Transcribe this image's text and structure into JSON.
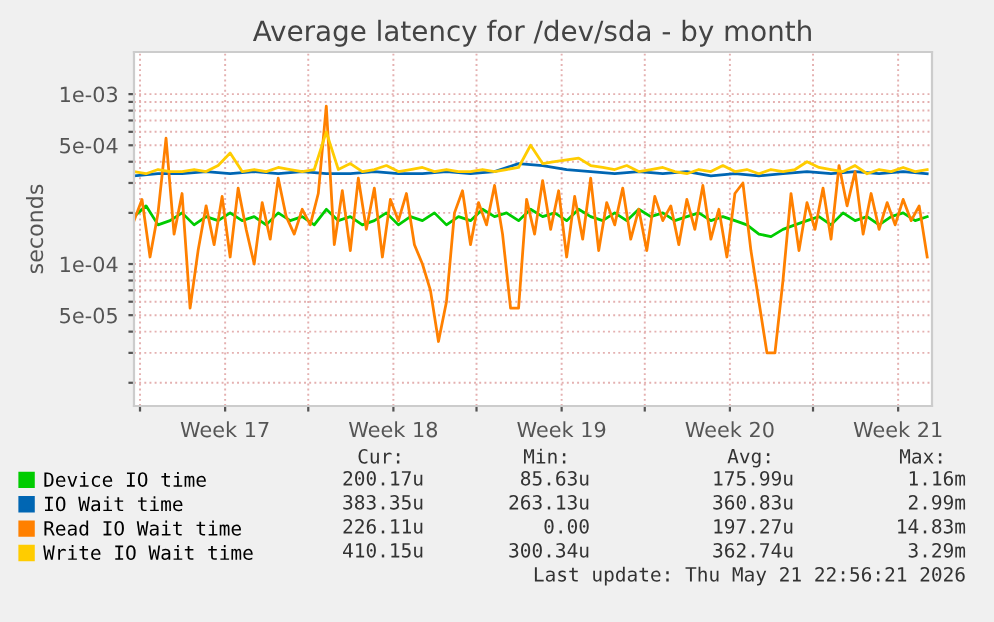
{
  "chart_data": {
    "type": "line",
    "title": "Average latency for /dev/sda - by month",
    "ylabel": "seconds",
    "log": true,
    "xlim": [
      "2026-04-19T18:00",
      "2026-05-22T22:48"
    ],
    "ylim": [
      1.46e-05,
      0.00177
    ],
    "xticks": [
      {
        "value": "2026-04-20",
        "label": null
      },
      {
        "value": "2026-04-23T13:00",
        "label": "Week 17"
      },
      {
        "value": "2026-04-27",
        "label": null
      },
      {
        "value": "2026-04-30T13:00",
        "label": "Week 18"
      },
      {
        "value": "2026-05-04",
        "label": null
      },
      {
        "value": "2026-05-07T13:00",
        "label": "Week 19"
      },
      {
        "value": "2026-05-11",
        "label": null
      },
      {
        "value": "2026-05-14T13:00",
        "label": "Week 20"
      },
      {
        "value": "2026-05-18",
        "label": null
      },
      {
        "value": "2026-05-21T13:00",
        "label": "Week 21"
      }
    ],
    "yticks": [
      {
        "value": 2e-05,
        "label": null
      },
      {
        "value": 3e-05,
        "label": null
      },
      {
        "value": 4e-05,
        "label": null
      },
      {
        "value": 5e-05,
        "label": "5e-05"
      },
      {
        "value": 6e-05,
        "label": null
      },
      {
        "value": 7e-05,
        "label": null
      },
      {
        "value": 8e-05,
        "label": null
      },
      {
        "value": 9e-05,
        "label": null
      },
      {
        "value": 0.0001,
        "label": "1e-04"
      },
      {
        "value": 0.0002,
        "label": null
      },
      {
        "value": 0.0003,
        "label": null
      },
      {
        "value": 0.0004,
        "label": null
      },
      {
        "value": 0.0005,
        "label": "5e-04"
      },
      {
        "value": 0.0006,
        "label": null
      },
      {
        "value": 0.0007,
        "label": null
      },
      {
        "value": 0.0008,
        "label": null
      },
      {
        "value": 0.0009,
        "label": null
      },
      {
        "value": 0.001,
        "label": "1e-03"
      }
    ],
    "grid": true,
    "legend": "bottom",
    "line_style": "solid",
    "marker": "none",
    "series": [
      {
        "name": "Device IO time",
        "color": "#00cc00",
        "x": [
          "2026-04-19T18:00",
          "2026-04-20T06:00",
          "2026-04-20T18:00",
          "2026-04-21T06:00",
          "2026-04-21T18:00",
          "2026-04-22T06:00",
          "2026-04-22T18:00",
          "2026-04-23T06:00",
          "2026-04-23T18:00",
          "2026-04-24T06:00",
          "2026-04-24T18:00",
          "2026-04-25T06:00",
          "2026-04-25T18:00",
          "2026-04-26T06:00",
          "2026-04-26T18:00",
          "2026-04-27T06:00",
          "2026-04-27T18:00",
          "2026-04-28T06:00",
          "2026-04-28T18:00",
          "2026-04-29T06:00",
          "2026-04-29T18:00",
          "2026-04-30T06:00",
          "2026-04-30T18:00",
          "2026-05-01T06:00",
          "2026-05-01T18:00",
          "2026-05-02T06:00",
          "2026-05-02T18:00",
          "2026-05-03T06:00",
          "2026-05-03T18:00",
          "2026-05-04T06:00",
          "2026-05-04T18:00",
          "2026-05-05T06:00",
          "2026-05-05T18:00",
          "2026-05-06T06:00",
          "2026-05-06T18:00",
          "2026-05-07T06:00",
          "2026-05-07T18:00",
          "2026-05-08T06:00",
          "2026-05-08T18:00",
          "2026-05-09T06:00",
          "2026-05-09T18:00",
          "2026-05-10T06:00",
          "2026-05-10T18:00",
          "2026-05-11T06:00",
          "2026-05-11T18:00",
          "2026-05-12T06:00",
          "2026-05-12T18:00",
          "2026-05-13T06:00",
          "2026-05-13T18:00",
          "2026-05-14T06:00",
          "2026-05-14T18:00",
          "2026-05-15T06:00",
          "2026-05-15T18:00",
          "2026-05-16T06:00",
          "2026-05-16T18:00",
          "2026-05-17T06:00",
          "2026-05-17T18:00",
          "2026-05-18T06:00",
          "2026-05-18T18:00",
          "2026-05-19T06:00",
          "2026-05-19T18:00",
          "2026-05-20T06:00",
          "2026-05-20T18:00",
          "2026-05-21T06:00",
          "2026-05-21T18:00",
          "2026-05-22T06:00",
          "2026-05-22T18:00"
        ],
        "values": [
          0.00019,
          0.00022,
          0.00017,
          0.00018,
          0.0002,
          0.00017,
          0.00019,
          0.00018,
          0.0002,
          0.00018,
          0.00019,
          0.00017,
          0.0002,
          0.00018,
          0.00019,
          0.00017,
          0.00021,
          0.00018,
          0.00019,
          0.00017,
          0.00018,
          0.0002,
          0.00017,
          0.00019,
          0.00018,
          0.0002,
          0.00017,
          0.00019,
          0.00018,
          0.00021,
          0.00019,
          0.0002,
          0.00018,
          0.00021,
          0.00019,
          0.0002,
          0.00018,
          0.00021,
          0.00019,
          0.00018,
          0.0002,
          0.00018,
          0.00021,
          0.00019,
          0.0002,
          0.00018,
          0.00019,
          0.0002,
          0.00018,
          0.00019,
          0.00018,
          0.00017,
          0.00015,
          0.000145,
          0.00016,
          0.00017,
          0.00018,
          0.00019,
          0.00017,
          0.0002,
          0.00018,
          0.00019,
          0.00017,
          0.00019,
          0.0002,
          0.00018,
          0.00019
        ]
      },
      {
        "name": "IO Wait time",
        "color": "#0066b3",
        "x": [
          "2026-04-19T18:00",
          "2026-04-20T18:00",
          "2026-04-21T18:00",
          "2026-04-22T18:00",
          "2026-04-23T18:00",
          "2026-04-24T18:00",
          "2026-04-25T18:00",
          "2026-04-26T18:00",
          "2026-04-27T18:00",
          "2026-04-28T18:00",
          "2026-04-29T18:00",
          "2026-04-30T18:00",
          "2026-05-01T18:00",
          "2026-05-02T18:00",
          "2026-05-03T18:00",
          "2026-05-04T18:00",
          "2026-05-05T18:00",
          "2026-05-06T18:00",
          "2026-05-07T18:00",
          "2026-05-08T18:00",
          "2026-05-09T18:00",
          "2026-05-10T18:00",
          "2026-05-11T18:00",
          "2026-05-12T18:00",
          "2026-05-13T18:00",
          "2026-05-14T18:00",
          "2026-05-15T18:00",
          "2026-05-16T18:00",
          "2026-05-17T18:00",
          "2026-05-18T18:00",
          "2026-05-19T18:00",
          "2026-05-20T18:00",
          "2026-05-21T18:00",
          "2026-05-22T18:00"
        ],
        "values": [
          0.00033,
          0.00034,
          0.00034,
          0.00035,
          0.00034,
          0.00035,
          0.00034,
          0.00035,
          0.00034,
          0.00034,
          0.00035,
          0.00034,
          0.00034,
          0.00035,
          0.00034,
          0.00035,
          0.00039,
          0.00038,
          0.00036,
          0.00035,
          0.00034,
          0.00035,
          0.00034,
          0.00035,
          0.00033,
          0.00034,
          0.00033,
          0.00034,
          0.00035,
          0.00034,
          0.00035,
          0.00034,
          0.00035,
          0.00034
        ]
      },
      {
        "name": "Read IO Wait time",
        "color": "#ff8000",
        "x": [
          "2026-04-19T18:00",
          "2026-04-20T02:00",
          "2026-04-20T10:00",
          "2026-04-20T18:00",
          "2026-04-21T02:00",
          "2026-04-21T10:00",
          "2026-04-21T18:00",
          "2026-04-22T02:00",
          "2026-04-22T10:00",
          "2026-04-22T18:00",
          "2026-04-23T02:00",
          "2026-04-23T10:00",
          "2026-04-23T18:00",
          "2026-04-24T02:00",
          "2026-04-24T10:00",
          "2026-04-24T18:00",
          "2026-04-25T02:00",
          "2026-04-25T10:00",
          "2026-04-25T18:00",
          "2026-04-26T02:00",
          "2026-04-26T10:00",
          "2026-04-26T18:00",
          "2026-04-27T02:00",
          "2026-04-27T10:00",
          "2026-04-27T18:00",
          "2026-04-28T02:00",
          "2026-04-28T10:00",
          "2026-04-28T18:00",
          "2026-04-29T02:00",
          "2026-04-29T10:00",
          "2026-04-29T18:00",
          "2026-04-30T02:00",
          "2026-04-30T10:00",
          "2026-04-30T18:00",
          "2026-05-01T02:00",
          "2026-05-01T10:00",
          "2026-05-01T18:00",
          "2026-05-02T02:00",
          "2026-05-02T10:00",
          "2026-05-02T18:00",
          "2026-05-03T02:00",
          "2026-05-03T10:00",
          "2026-05-03T18:00",
          "2026-05-04T02:00",
          "2026-05-04T10:00",
          "2026-05-04T18:00",
          "2026-05-05T02:00",
          "2026-05-05T10:00",
          "2026-05-05T18:00",
          "2026-05-06T02:00",
          "2026-05-06T10:00",
          "2026-05-06T18:00",
          "2026-05-07T02:00",
          "2026-05-07T10:00",
          "2026-05-07T18:00",
          "2026-05-08T02:00",
          "2026-05-08T10:00",
          "2026-05-08T18:00",
          "2026-05-09T02:00",
          "2026-05-09T10:00",
          "2026-05-09T18:00",
          "2026-05-10T02:00",
          "2026-05-10T10:00",
          "2026-05-10T18:00",
          "2026-05-11T02:00",
          "2026-05-11T10:00",
          "2026-05-11T18:00",
          "2026-05-12T02:00",
          "2026-05-12T10:00",
          "2026-05-12T18:00",
          "2026-05-13T02:00",
          "2026-05-13T10:00",
          "2026-05-13T18:00",
          "2026-05-14T02:00",
          "2026-05-14T10:00",
          "2026-05-14T18:00",
          "2026-05-15T02:00",
          "2026-05-15T10:00",
          "2026-05-15T18:00",
          "2026-05-16T02:00",
          "2026-05-16T10:00",
          "2026-05-16T18:00",
          "2026-05-17T02:00",
          "2026-05-17T10:00",
          "2026-05-17T18:00",
          "2026-05-18T02:00",
          "2026-05-18T10:00",
          "2026-05-18T18:00",
          "2026-05-19T02:00",
          "2026-05-19T10:00",
          "2026-05-19T18:00",
          "2026-05-20T02:00",
          "2026-05-20T10:00",
          "2026-05-20T18:00",
          "2026-05-21T02:00",
          "2026-05-21T10:00",
          "2026-05-21T18:00",
          "2026-05-22T02:00",
          "2026-05-22T10:00",
          "2026-05-22T18:00"
        ],
        "values": [
          0.00018,
          0.00024,
          0.00011,
          0.0002,
          0.00055,
          0.00015,
          0.00026,
          5.5e-05,
          0.00012,
          0.00022,
          0.00013,
          0.00025,
          0.00011,
          0.00028,
          0.00016,
          0.0001,
          0.00023,
          0.00014,
          0.00032,
          0.00019,
          0.00015,
          0.00021,
          0.00017,
          0.00026,
          0.00085,
          0.00013,
          0.00027,
          0.00012,
          0.00032,
          0.00016,
          0.00028,
          0.00011,
          0.00024,
          0.00018,
          0.00026,
          0.00013,
          0.0001,
          7e-05,
          3.5e-05,
          6e-05,
          0.0002,
          0.00027,
          0.00013,
          0.00023,
          0.00017,
          0.00029,
          0.00015,
          5.5e-05,
          5.5e-05,
          0.00024,
          0.00015,
          0.00031,
          0.00016,
          0.00027,
          0.00011,
          0.00025,
          0.00014,
          0.00032,
          0.00012,
          0.00023,
          0.00017,
          0.00028,
          0.00014,
          0.00021,
          0.00012,
          0.00025,
          0.00018,
          0.00022,
          0.00013,
          0.00024,
          0.00016,
          0.00029,
          0.00014,
          0.00021,
          0.00011,
          0.00026,
          0.0003,
          0.00012,
          6e-05,
          3e-05,
          3e-05,
          8e-05,
          0.00026,
          0.00012,
          0.00023,
          0.00016,
          0.00028,
          0.00014,
          0.00038,
          0.00022,
          0.00035,
          0.00015,
          0.00026,
          0.00016,
          0.00023,
          0.00017,
          0.00024,
          0.00018,
          0.00022,
          0.00011
        ]
      },
      {
        "name": "Write IO Wait time",
        "color": "#ffcc00",
        "x": [
          "2026-04-19T18:00",
          "2026-04-20T06:00",
          "2026-04-20T18:00",
          "2026-04-21T06:00",
          "2026-04-21T18:00",
          "2026-04-22T06:00",
          "2026-04-22T18:00",
          "2026-04-23T06:00",
          "2026-04-23T18:00",
          "2026-04-24T06:00",
          "2026-04-24T18:00",
          "2026-04-25T06:00",
          "2026-04-25T18:00",
          "2026-04-26T06:00",
          "2026-04-26T18:00",
          "2026-04-27T06:00",
          "2026-04-27T18:00",
          "2026-04-28T06:00",
          "2026-04-28T18:00",
          "2026-04-29T06:00",
          "2026-04-29T18:00",
          "2026-04-30T06:00",
          "2026-04-30T18:00",
          "2026-05-01T06:00",
          "2026-05-01T18:00",
          "2026-05-02T06:00",
          "2026-05-02T18:00",
          "2026-05-03T06:00",
          "2026-05-03T18:00",
          "2026-05-04T06:00",
          "2026-05-04T18:00",
          "2026-05-05T06:00",
          "2026-05-05T18:00",
          "2026-05-06T06:00",
          "2026-05-06T18:00",
          "2026-05-07T06:00",
          "2026-05-07T18:00",
          "2026-05-08T06:00",
          "2026-05-08T18:00",
          "2026-05-09T06:00",
          "2026-05-09T18:00",
          "2026-05-10T06:00",
          "2026-05-10T18:00",
          "2026-05-11T06:00",
          "2026-05-11T18:00",
          "2026-05-12T06:00",
          "2026-05-12T18:00",
          "2026-05-13T06:00",
          "2026-05-13T18:00",
          "2026-05-14T06:00",
          "2026-05-14T18:00",
          "2026-05-15T06:00",
          "2026-05-15T18:00",
          "2026-05-16T06:00",
          "2026-05-16T18:00",
          "2026-05-17T06:00",
          "2026-05-17T18:00",
          "2026-05-18T06:00",
          "2026-05-18T18:00",
          "2026-05-19T06:00",
          "2026-05-19T18:00",
          "2026-05-20T06:00",
          "2026-05-20T18:00",
          "2026-05-21T06:00",
          "2026-05-21T18:00",
          "2026-05-22T06:00",
          "2026-05-22T18:00"
        ],
        "values": [
          0.00035,
          0.00034,
          0.00036,
          0.00035,
          0.00035,
          0.00036,
          0.00035,
          0.00038,
          0.00045,
          0.00035,
          0.00036,
          0.00035,
          0.00037,
          0.00036,
          0.00035,
          0.00036,
          0.0006,
          0.00036,
          0.00039,
          0.00035,
          0.00036,
          0.00038,
          0.00035,
          0.00036,
          0.00037,
          0.00035,
          0.00036,
          0.00035,
          0.00035,
          0.00036,
          0.00035,
          0.00036,
          0.00037,
          0.0005,
          0.00039,
          0.0004,
          0.00041,
          0.00042,
          0.00038,
          0.00037,
          0.00036,
          0.00038,
          0.00035,
          0.00036,
          0.00037,
          0.00035,
          0.00034,
          0.00036,
          0.00035,
          0.00038,
          0.00035,
          0.00036,
          0.00034,
          0.00036,
          0.00035,
          0.00036,
          0.0004,
          0.00037,
          0.00036,
          0.00035,
          0.00038,
          0.00034,
          0.00036,
          0.00035,
          0.00037,
          0.00035,
          0.00036
        ]
      }
    ],
    "annotations": [
      "Cur:",
      "Min:",
      "Avg:",
      "Max:",
      "200.17u",
      "85.63u",
      "175.99u",
      "1.16m",
      "383.35u",
      "263.13u",
      "360.83u",
      "2.99m",
      "226.11u",
      "0.00",
      "197.27u",
      "14.83m",
      "410.15u",
      "300.34u",
      "362.74u",
      "3.29m",
      "Last update: Thu May 21 22:56:21 2026"
    ]
  }
}
